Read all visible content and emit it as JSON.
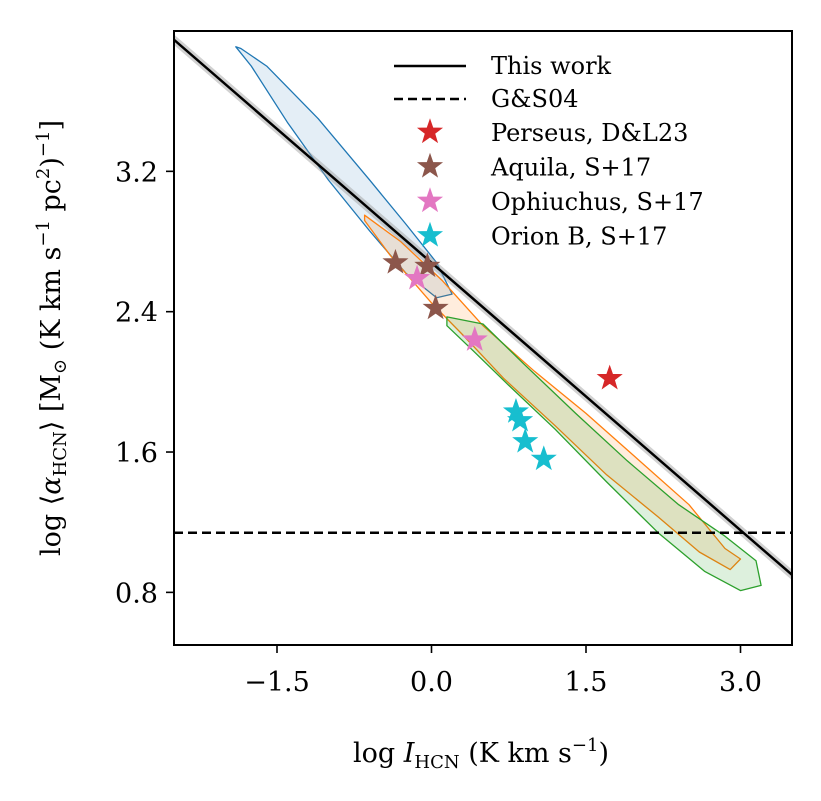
{
  "chart_data": {
    "type": "scatter",
    "xlabel": "log I_HCN (K km s^-1)",
    "xlabel_parts": {
      "pre": "log ",
      "sym": "I",
      "sub": "HCN",
      "post": " (K km s",
      "sup": "−1",
      "close": ")"
    },
    "ylabel": "log ⟨α_HCN⟩ [M⊙ (K km s^-1 pc^2)^-1]",
    "ylabel_parts": {
      "pre": "log ⟨",
      "sym": "α",
      "sub": "HCN",
      "mid": "⟩ [M",
      "sun_sub": "⊙",
      "post": " (K km s",
      "sup1": "−1",
      "post2": " pc",
      "sup2": "2",
      "close": ")",
      "sup3": "−1",
      "end": "]"
    },
    "xlim": [
      -2.5,
      3.5
    ],
    "ylim": [
      0.5,
      4.0
    ],
    "xticks": [
      {
        "v": -1.5,
        "label": "−1.5"
      },
      {
        "v": 0.0,
        "label": "0.0"
      },
      {
        "v": 1.5,
        "label": "1.5"
      },
      {
        "v": 3.0,
        "label": "3.0"
      }
    ],
    "yticks": [
      {
        "v": 0.8,
        "label": "0.8"
      },
      {
        "v": 1.6,
        "label": "1.6"
      },
      {
        "v": 2.4,
        "label": "2.4"
      },
      {
        "v": 3.2,
        "label": "3.2"
      }
    ],
    "grid": false,
    "legend_position": "top-right",
    "fit_line": {
      "name": "This work",
      "x": [
        -2.5,
        3.5
      ],
      "y": [
        3.95,
        0.9
      ],
      "color": "#000000"
    },
    "reference_line": {
      "name": "G&S04",
      "y": 1.14,
      "color": "#000000"
    },
    "stars": [
      {
        "name": "Perseus, D&L23",
        "color": "#d62728",
        "points": [
          [
            1.73,
            2.02
          ]
        ]
      },
      {
        "name": "Aquila, S+17",
        "color": "#8c564b",
        "points": [
          [
            -0.35,
            2.68
          ],
          [
            -0.04,
            2.66
          ],
          [
            0.04,
            2.42
          ]
        ]
      },
      {
        "name": "Ophiuchus, S+17",
        "color": "#e377c2",
        "points": [
          [
            -0.14,
            2.59
          ],
          [
            0.42,
            2.24
          ]
        ]
      },
      {
        "name": "Orion B, S+17",
        "color": "#17becf",
        "points": [
          [
            0.82,
            1.83
          ],
          [
            0.86,
            1.78
          ],
          [
            0.91,
            1.66
          ],
          [
            1.09,
            1.56
          ]
        ]
      }
    ],
    "contours": [
      {
        "color": "#1f77b4",
        "fill_opacity": 0.12,
        "polygon": [
          [
            -1.85,
            3.9
          ],
          [
            -1.6,
            3.8
          ],
          [
            -1.1,
            3.5
          ],
          [
            -0.6,
            3.15
          ],
          [
            -0.25,
            2.9
          ],
          [
            0.05,
            2.68
          ],
          [
            0.2,
            2.5
          ],
          [
            0.05,
            2.48
          ],
          [
            -0.25,
            2.62
          ],
          [
            -0.6,
            2.86
          ],
          [
            -1.0,
            3.15
          ],
          [
            -1.4,
            3.48
          ],
          [
            -1.75,
            3.8
          ],
          [
            -1.9,
            3.91
          ]
        ]
      },
      {
        "color": "#ff7f0e",
        "fill_opacity": 0.14,
        "polygon": [
          [
            -0.65,
            2.95
          ],
          [
            -0.3,
            2.8
          ],
          [
            0.1,
            2.58
          ],
          [
            0.5,
            2.32
          ],
          [
            1.0,
            2.06
          ],
          [
            1.5,
            1.82
          ],
          [
            2.0,
            1.56
          ],
          [
            2.5,
            1.3
          ],
          [
            2.85,
            1.05
          ],
          [
            3.0,
            0.99
          ],
          [
            2.9,
            0.93
          ],
          [
            2.6,
            1.03
          ],
          [
            2.2,
            1.23
          ],
          [
            1.7,
            1.47
          ],
          [
            1.2,
            1.75
          ],
          [
            0.7,
            2.02
          ],
          [
            0.3,
            2.27
          ],
          [
            0.0,
            2.45
          ],
          [
            -0.4,
            2.72
          ],
          [
            -0.65,
            2.92
          ]
        ]
      },
      {
        "color": "#2ca02c",
        "fill_opacity": 0.16,
        "polygon": [
          [
            0.15,
            2.37
          ],
          [
            0.5,
            2.33
          ],
          [
            0.9,
            2.1
          ],
          [
            1.4,
            1.82
          ],
          [
            1.9,
            1.55
          ],
          [
            2.4,
            1.3
          ],
          [
            2.85,
            1.12
          ],
          [
            3.15,
            0.98
          ],
          [
            3.2,
            0.84
          ],
          [
            3.0,
            0.81
          ],
          [
            2.65,
            0.92
          ],
          [
            2.2,
            1.14
          ],
          [
            1.7,
            1.43
          ],
          [
            1.2,
            1.73
          ],
          [
            0.75,
            1.98
          ],
          [
            0.4,
            2.18
          ],
          [
            0.15,
            2.32
          ]
        ]
      }
    ]
  }
}
